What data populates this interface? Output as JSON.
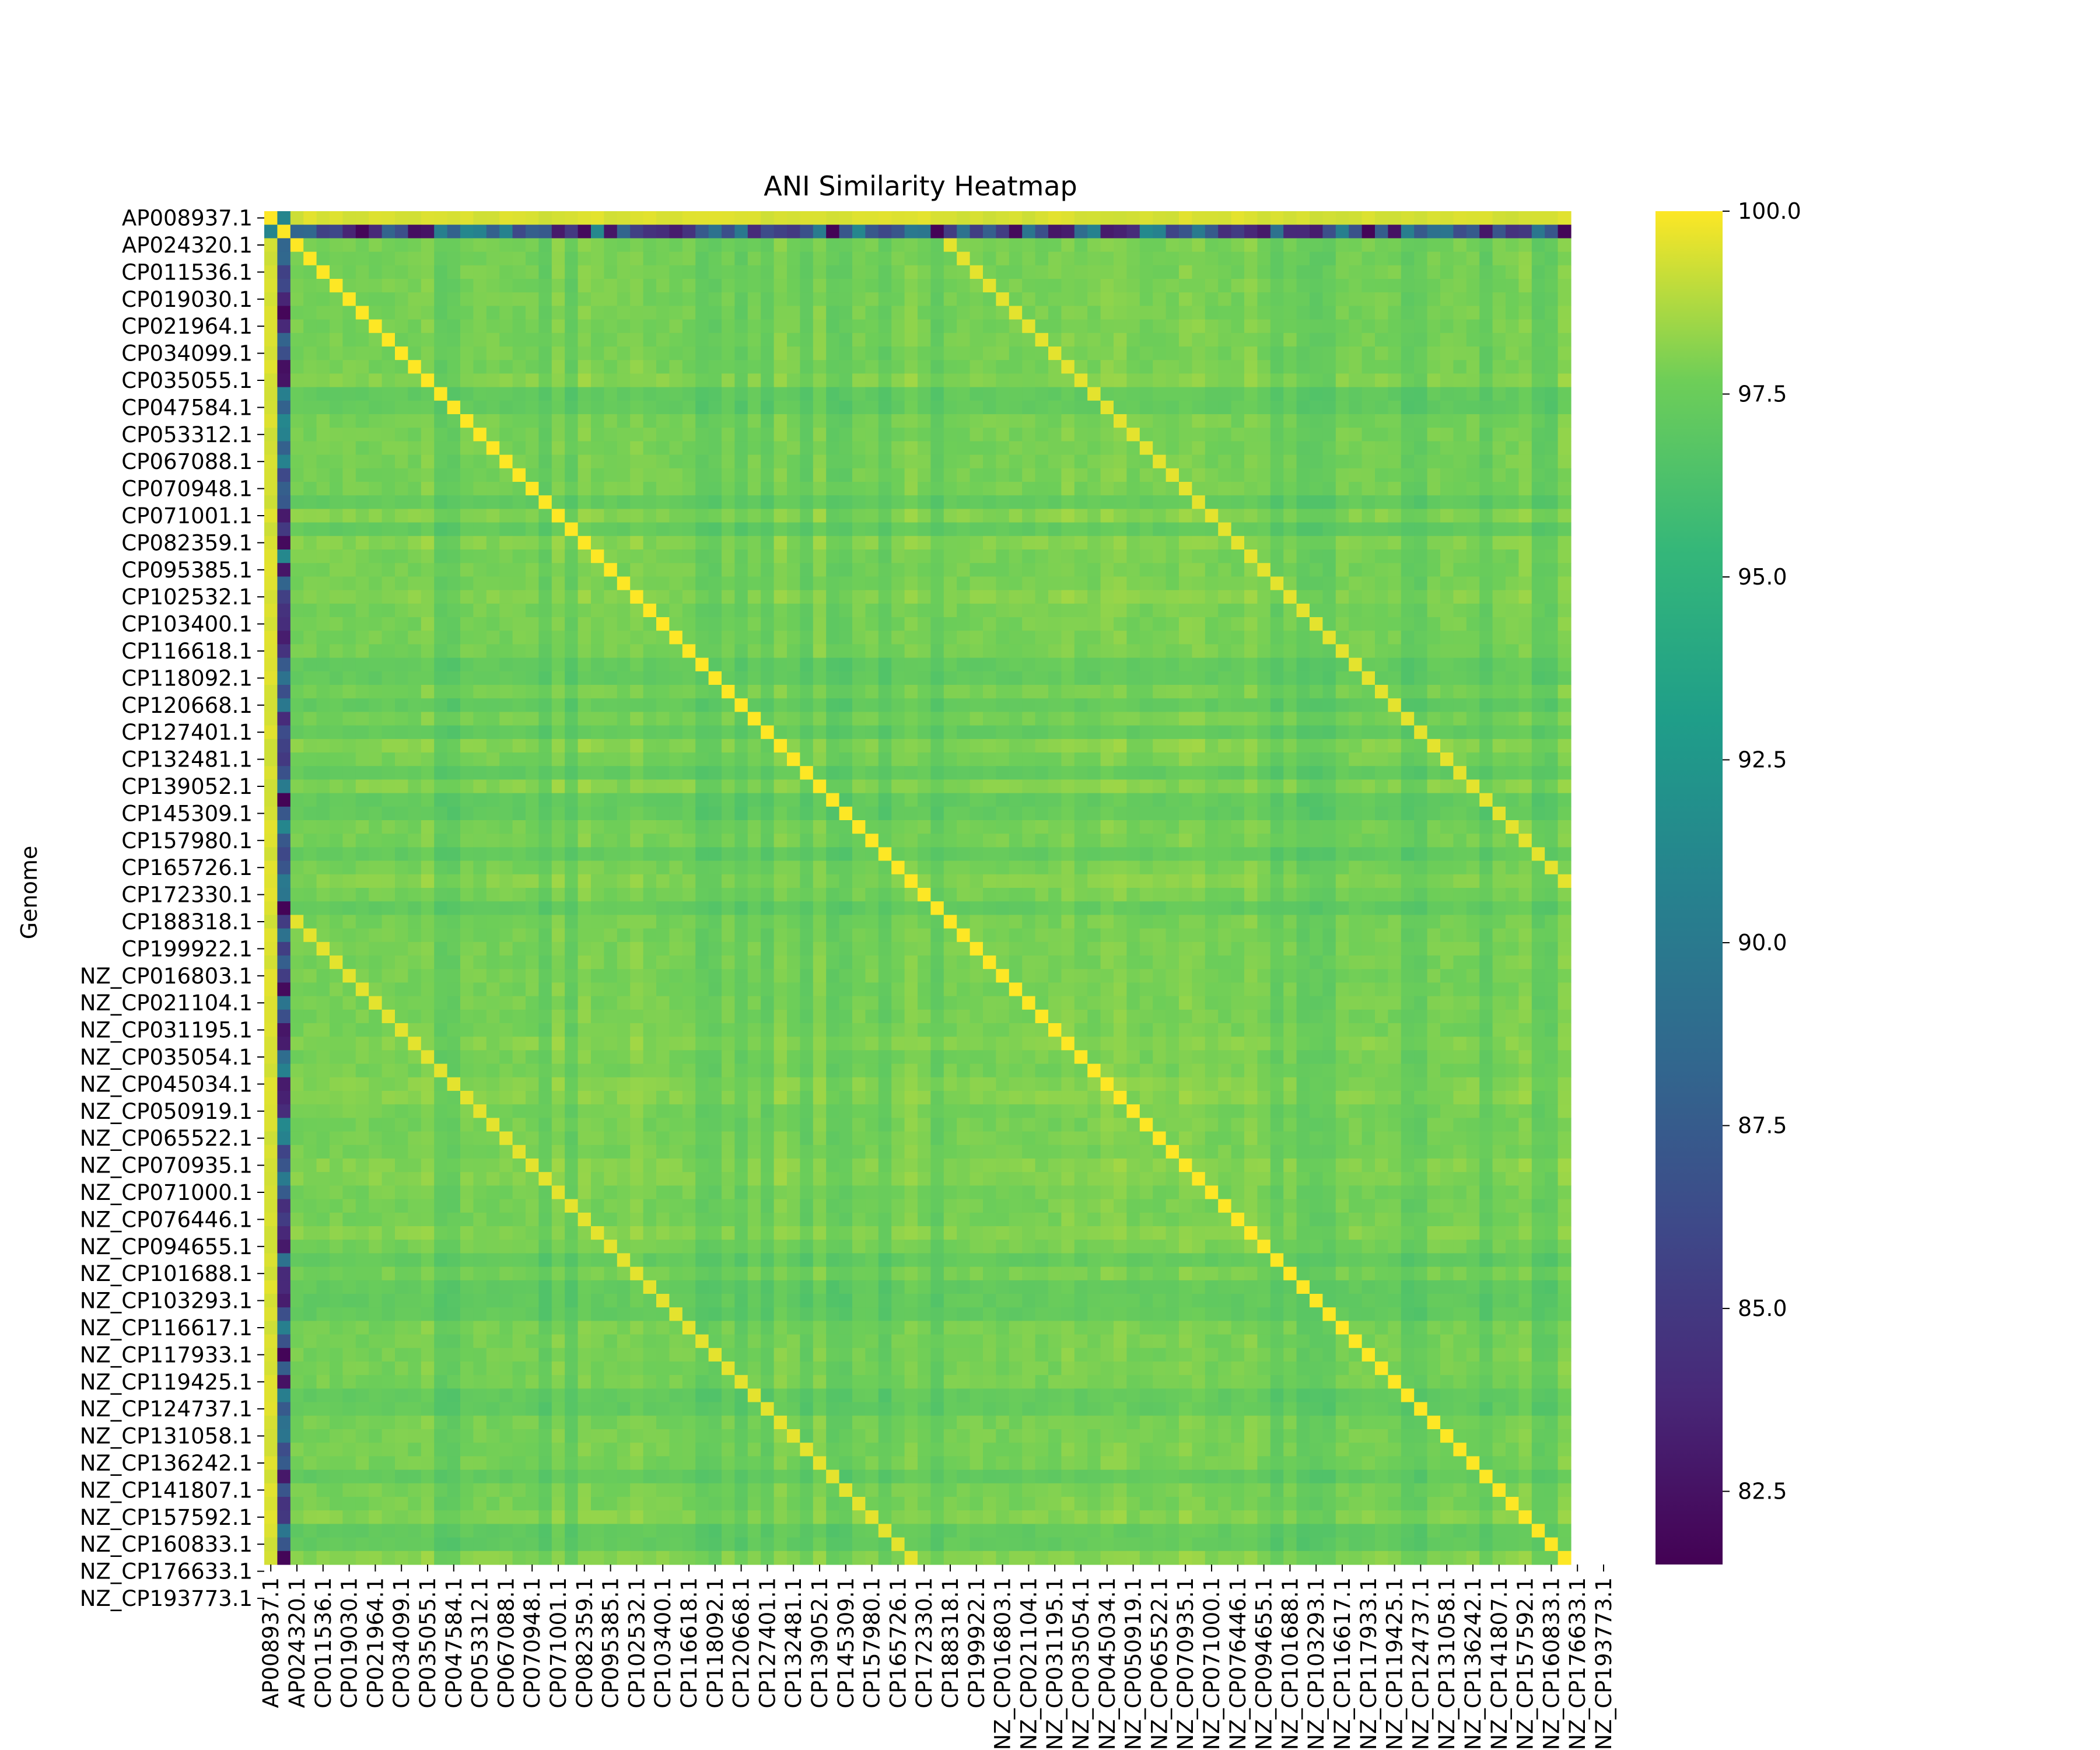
{
  "chart_data": {
    "type": "heatmap",
    "title": "ANI Similarity Heatmap",
    "ylabel": "Genome",
    "xlabel": "",
    "colormap": "viridis",
    "value_range": [
      81.5,
      100.0
    ],
    "colorbar": {
      "ticks": [
        82.5,
        85.0,
        87.5,
        90.0,
        92.5,
        95.0,
        97.5,
        100.0
      ],
      "tick_labels": [
        "82.5",
        "85.0",
        "87.5",
        "90.0",
        "92.5",
        "95.0",
        "97.5",
        "100.0"
      ]
    },
    "grid_size": 100,
    "tick_labels": [
      "AP008937.1",
      "AP024320.1",
      "CP011536.1",
      "CP019030.1",
      "CP021964.1",
      "CP034099.1",
      "CP035055.1",
      "CP047584.1",
      "CP053312.1",
      "CP067088.1",
      "CP070948.1",
      "CP071001.1",
      "CP082359.1",
      "CP095385.1",
      "CP102532.1",
      "CP103400.1",
      "CP116618.1",
      "CP118092.1",
      "CP120668.1",
      "CP127401.1",
      "CP132481.1",
      "CP139052.1",
      "CP145309.1",
      "CP157980.1",
      "CP165726.1",
      "CP172330.1",
      "CP188318.1",
      "CP199922.1",
      "NZ_CP016803.1",
      "NZ_CP021104.1",
      "NZ_CP031195.1",
      "NZ_CP035054.1",
      "NZ_CP045034.1",
      "NZ_CP050919.1",
      "NZ_CP065522.1",
      "NZ_CP070935.1",
      "NZ_CP071000.1",
      "NZ_CP076446.1",
      "NZ_CP094655.1",
      "NZ_CP101688.1",
      "NZ_CP103293.1",
      "NZ_CP116617.1",
      "NZ_CP117933.1",
      "NZ_CP119425.1",
      "NZ_CP124737.1",
      "NZ_CP131058.1",
      "NZ_CP136242.1",
      "NZ_CP141807.1",
      "NZ_CP157592.1",
      "NZ_CP160833.1",
      "NZ_CP176633.1",
      "NZ_CP193773.1"
    ],
    "tick_label_every": 2,
    "outlier_genome": "AP024320.1",
    "outlier_index": 1,
    "outlier_ani_range": [
      81.5,
      91.5
    ],
    "typical_ani": 97.8,
    "diagonal_ani": 100.0
  }
}
